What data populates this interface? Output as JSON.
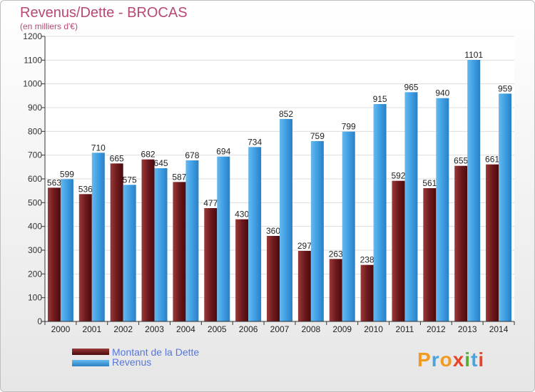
{
  "title": "Revenus/Dette - BROCAS",
  "subtitle": "(en milliers d'€)",
  "colors": {
    "dette": "#7a1e22",
    "revenus": "#3f9ee3",
    "title": "#b84876"
  },
  "legend": [
    {
      "label": "Montant de la Dette",
      "series": "dette"
    },
    {
      "label": "Revenus",
      "series": "revenus"
    }
  ],
  "logo": {
    "text": "Proxiti"
  },
  "chart_data": {
    "type": "bar",
    "title": "Revenus/Dette - BROCAS",
    "subtitle": "(en milliers d'€)",
    "xlabel": "",
    "ylabel": "",
    "ylim": [
      0,
      1200
    ],
    "yticks": [
      0,
      100,
      200,
      300,
      400,
      500,
      600,
      700,
      800,
      900,
      1000,
      1100,
      1200
    ],
    "grid": true,
    "legend_position": "bottom-left",
    "categories": [
      "2000",
      "2001",
      "2002",
      "2003",
      "2004",
      "2005",
      "2006",
      "2007",
      "2008",
      "2009",
      "2010",
      "2011",
      "2012",
      "2013",
      "2014"
    ],
    "series": [
      {
        "name": "Montant de la Dette",
        "values": [
          563,
          536,
          665,
          682,
          587,
          477,
          430,
          360,
          297,
          263,
          238,
          592,
          561,
          655,
          661
        ]
      },
      {
        "name": "Revenus",
        "values": [
          599,
          710,
          575,
          645,
          678,
          694,
          734,
          852,
          759,
          799,
          915,
          965,
          940,
          1101,
          959
        ]
      }
    ]
  }
}
